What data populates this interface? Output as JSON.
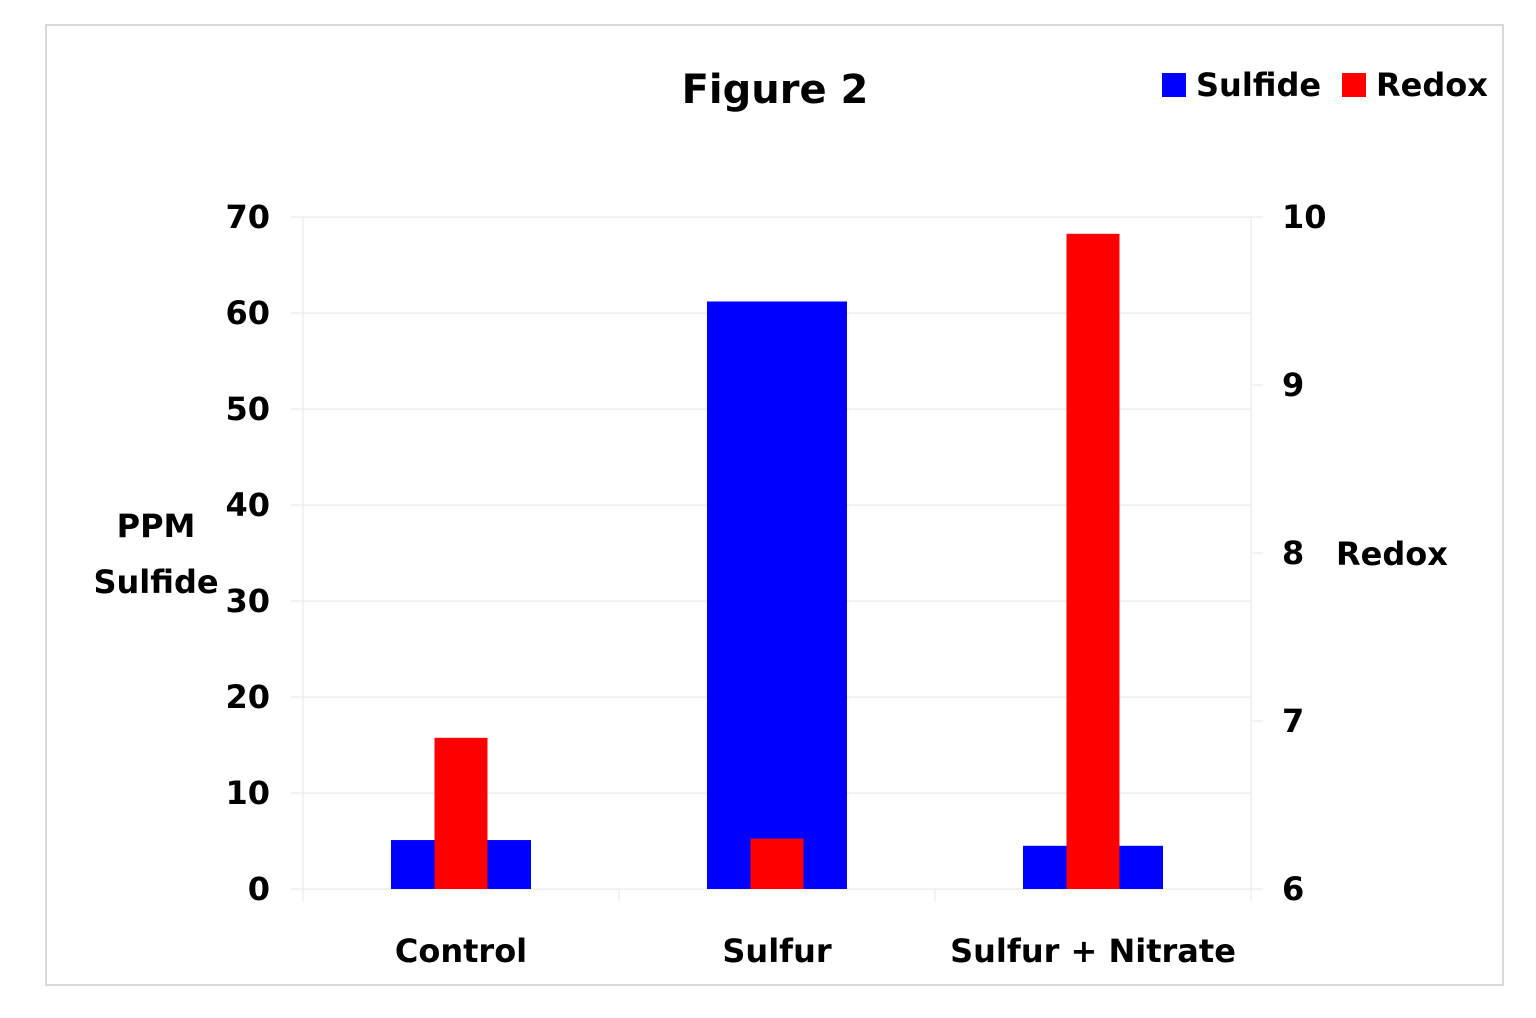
{
  "chart_data": {
    "type": "bar",
    "title": "Figure 2",
    "categories": [
      "Control",
      "Sulfur",
      "Sulfur + Nitrate"
    ],
    "series": [
      {
        "name": "Sulfide",
        "color": "#0000ff",
        "values": [
          5.1,
          61.2,
          4.5
        ]
      },
      {
        "name": "Redox",
        "color": "#ff0000",
        "values": [
          6.9,
          6.3,
          9.9
        ],
        "axis": "y2"
      }
    ],
    "y_label": [
      "PPM",
      "Sulfide"
    ],
    "y2_label": "Redox",
    "ylim": [
      0,
      70
    ],
    "yticks": [
      0,
      10,
      20,
      30,
      40,
      50,
      60,
      70
    ],
    "y2lim": [
      6,
      10
    ],
    "y2ticks": [
      6,
      7,
      8,
      9,
      10
    ],
    "grid": true,
    "legend": "top-right"
  }
}
